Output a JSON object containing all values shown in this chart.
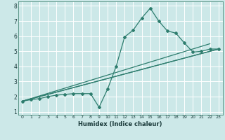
{
  "xlabel": "Humidex (Indice chaleur)",
  "bg_color": "#cce8e8",
  "grid_color": "#ffffff",
  "line_color": "#2e7d6e",
  "xlim": [
    -0.5,
    23.5
  ],
  "ylim": [
    0.8,
    8.3
  ],
  "xticks": [
    0,
    1,
    2,
    3,
    4,
    5,
    6,
    7,
    8,
    9,
    10,
    11,
    12,
    13,
    14,
    15,
    16,
    17,
    18,
    19,
    20,
    21,
    22,
    23
  ],
  "yticks": [
    1,
    2,
    3,
    4,
    5,
    6,
    7,
    8
  ],
  "lines": [
    {
      "x": [
        0,
        1,
        2,
        3,
        4,
        5,
        6,
        7,
        8,
        9,
        10,
        11,
        12,
        13,
        14,
        15,
        16,
        17,
        18,
        19,
        20,
        21,
        22,
        23
      ],
      "y": [
        1.7,
        1.8,
        1.87,
        2.0,
        2.1,
        2.15,
        2.2,
        2.2,
        2.2,
        1.3,
        2.5,
        4.0,
        5.95,
        6.4,
        7.2,
        7.85,
        7.0,
        6.35,
        6.2,
        5.55,
        4.95,
        5.0,
        5.15,
        5.15
      ],
      "marker": "D",
      "markersize": 2.0,
      "linewidth": 0.9
    },
    {
      "x": [
        0,
        23
      ],
      "y": [
        1.7,
        5.15
      ],
      "marker": null,
      "linewidth": 0.9
    },
    {
      "x": [
        0,
        22
      ],
      "y": [
        1.7,
        5.5
      ],
      "marker": null,
      "linewidth": 0.9
    },
    {
      "x": [
        0,
        23
      ],
      "y": [
        1.7,
        5.15
      ],
      "marker": null,
      "linewidth": 0.9
    }
  ]
}
